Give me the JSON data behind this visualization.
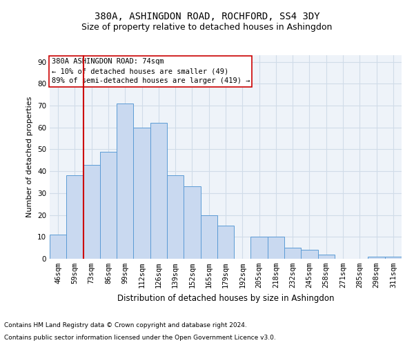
{
  "title1": "380A, ASHINGDON ROAD, ROCHFORD, SS4 3DY",
  "title2": "Size of property relative to detached houses in Ashingdon",
  "xlabel": "Distribution of detached houses by size in Ashingdon",
  "ylabel": "Number of detached properties",
  "categories": [
    "46sqm",
    "59sqm",
    "73sqm",
    "86sqm",
    "99sqm",
    "112sqm",
    "126sqm",
    "139sqm",
    "152sqm",
    "165sqm",
    "179sqm",
    "192sqm",
    "205sqm",
    "218sqm",
    "232sqm",
    "245sqm",
    "258sqm",
    "271sqm",
    "285sqm",
    "298sqm",
    "311sqm"
  ],
  "values": [
    11,
    38,
    43,
    49,
    71,
    60,
    62,
    38,
    33,
    20,
    15,
    0,
    10,
    10,
    5,
    4,
    2,
    0,
    0,
    1,
    1
  ],
  "bar_color": "#c9d9f0",
  "bar_edge_color": "#5b9bd5",
  "grid_color": "#d0dce8",
  "background_color": "#eef3f9",
  "vline_x_index": 2,
  "vline_color": "#cc0000",
  "annotation_title": "380A ASHINGDON ROAD: 74sqm",
  "annotation_line1": "← 10% of detached houses are smaller (49)",
  "annotation_line2": "89% of semi-detached houses are larger (419) →",
  "annotation_box_color": "#ffffff",
  "annotation_box_edge": "#cc0000",
  "ylim": [
    0,
    93
  ],
  "yticks": [
    0,
    10,
    20,
    30,
    40,
    50,
    60,
    70,
    80,
    90
  ],
  "footnote1": "Contains HM Land Registry data © Crown copyright and database right 2024.",
  "footnote2": "Contains public sector information licensed under the Open Government Licence v3.0.",
  "title1_fontsize": 10,
  "title2_fontsize": 9,
  "xlabel_fontsize": 8.5,
  "ylabel_fontsize": 8,
  "tick_fontsize": 7.5,
  "annot_fontsize": 7.5,
  "footnote_fontsize": 6.5
}
